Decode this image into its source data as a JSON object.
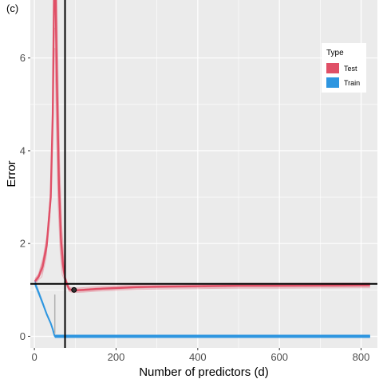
{
  "chart_data": {
    "type": "line",
    "panel_tag": "(c)",
    "xlabel": "Number of predictors (d)",
    "ylabel": "Error",
    "xlim": [
      -10,
      840
    ],
    "ylim": [
      -0.25,
      7.25
    ],
    "x_ticks": [
      0,
      200,
      400,
      600,
      800
    ],
    "y_ticks": [
      0,
      2,
      4,
      6
    ],
    "grid": true,
    "legend": {
      "title": "Type",
      "placement": "top-right",
      "entries": [
        {
          "label": "Test",
          "color": "#E05067"
        },
        {
          "label": "Train",
          "color": "#2E96E0"
        }
      ]
    },
    "series": [
      {
        "name": "Test",
        "color": "#E05067",
        "x": [
          1,
          10,
          20,
          30,
          40,
          45,
          48,
          50,
          52,
          55,
          60,
          65,
          70,
          75,
          80,
          85,
          90,
          100,
          120,
          150,
          200,
          250,
          300,
          400,
          500,
          600,
          700,
          822
        ],
        "y": [
          1.18,
          1.28,
          1.5,
          1.95,
          3.0,
          4.8,
          7.25,
          7.25,
          7.25,
          5.5,
          3.3,
          2.1,
          1.55,
          1.25,
          1.12,
          1.02,
          1.0,
          0.99,
          1.0,
          1.02,
          1.04,
          1.06,
          1.07,
          1.08,
          1.09,
          1.09,
          1.095,
          1.1
        ]
      },
      {
        "name": "Train",
        "color": "#2E96E0",
        "x": [
          1,
          10,
          20,
          30,
          40,
          45,
          48,
          50,
          822
        ],
        "y": [
          1.15,
          0.95,
          0.72,
          0.48,
          0.28,
          0.15,
          0.05,
          0.0,
          0.0
        ]
      }
    ],
    "reference_lines": {
      "vertical_x": 75,
      "horizontal_y": 1.13,
      "gray_vertical_x": 50
    },
    "marked_point": {
      "x": 97,
      "y": 1.0
    }
  }
}
